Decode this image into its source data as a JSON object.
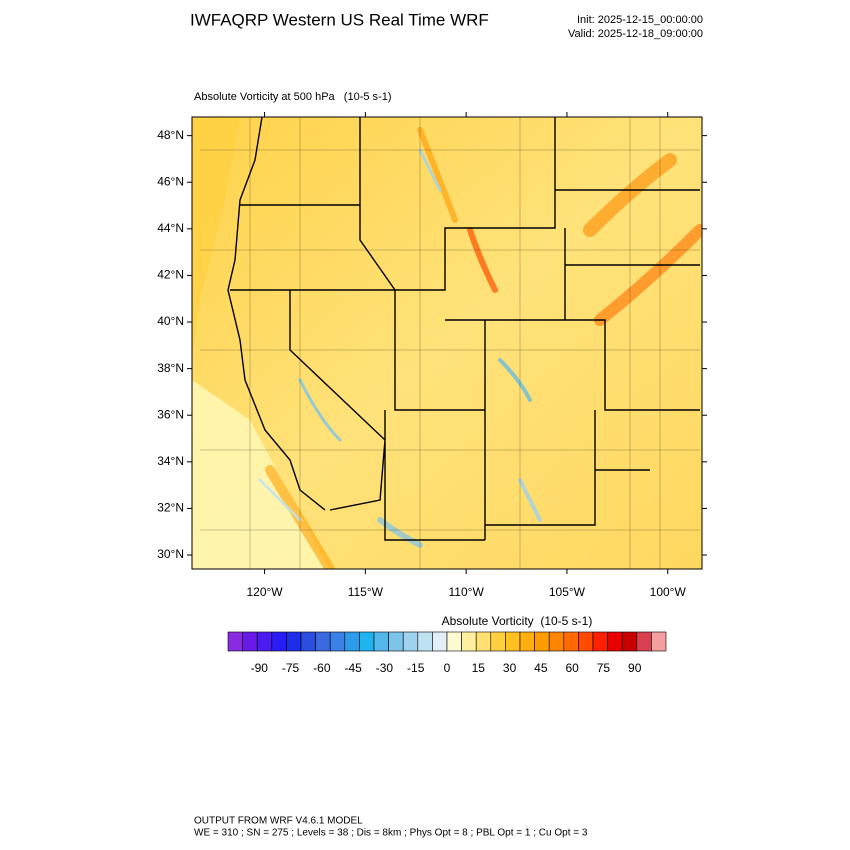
{
  "header": {
    "title": "IWFAQRP Western US Real Time WRF",
    "init": "Init: 2025-12-15_00:00:00",
    "valid": "Valid: 2025-12-18_09:00:00"
  },
  "map": {
    "subtitle": "Absolute Vorticity at 500 hPa   (10-5 s-1)",
    "xlim": [
      -123.6,
      -98.3
    ],
    "ylim": [
      29.4,
      48.8
    ],
    "xticks": [
      {
        "value": -120,
        "label": "120°W"
      },
      {
        "value": -115,
        "label": "115°W"
      },
      {
        "value": -110,
        "label": "110°W"
      },
      {
        "value": -105,
        "label": "105°W"
      },
      {
        "value": -100,
        "label": "100°W"
      }
    ],
    "yticks": [
      {
        "value": 30,
        "label": "30°N"
      },
      {
        "value": 32,
        "label": "32°N"
      },
      {
        "value": 34,
        "label": "34°N"
      },
      {
        "value": 36,
        "label": "36°N"
      },
      {
        "value": 38,
        "label": "38°N"
      },
      {
        "value": 40,
        "label": "40°N"
      },
      {
        "value": 42,
        "label": "42°N"
      },
      {
        "value": 44,
        "label": "44°N"
      },
      {
        "value": 46,
        "label": "46°N"
      },
      {
        "value": 48,
        "label": "48°N"
      }
    ]
  },
  "colorbar": {
    "title": "Absolute Vorticity  (10-5 s-1)",
    "range": [
      -105,
      105
    ],
    "colors": [
      "#8a2be2",
      "#6a1ae8",
      "#4b1cf0",
      "#2a1cf5",
      "#1e2ee8",
      "#2a4ee0",
      "#3a6ae0",
      "#3a82e6",
      "#2c9bec",
      "#1eb4f0",
      "#52b8ec",
      "#7cc4ea",
      "#9fd2ee",
      "#bfe2f2",
      "#e0f0f6",
      "#fffbd0",
      "#fff0a0",
      "#ffe070",
      "#ffd040",
      "#ffc020",
      "#ffb010",
      "#ff9c00",
      "#ff8400",
      "#ff6a00",
      "#ff4a00",
      "#ff2000",
      "#e80000",
      "#c80000",
      "#d84050",
      "#f4a0a0"
    ],
    "ticks": [
      -90,
      -75,
      -60,
      -45,
      -30,
      -15,
      0,
      15,
      30,
      45,
      60,
      75,
      90
    ]
  },
  "footer": {
    "line1": "OUTPUT FROM WRF V4.6.1 MODEL",
    "line2": "WE = 310 ; SN = 275 ; Levels = 38 ; Dis = 8km ; Phys Opt = 8 ; PBL Opt = 1 ; Cu Opt = 3"
  }
}
